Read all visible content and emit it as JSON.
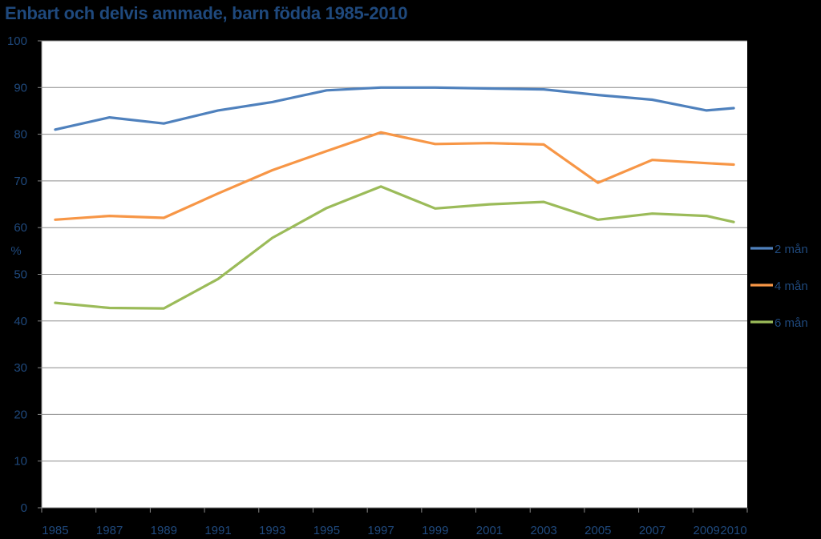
{
  "chart_data": {
    "type": "line",
    "title": "Enbart och delvis ammade, barn födda 1985-2010",
    "xlabel": "",
    "ylabel": "%",
    "ylim": [
      0,
      100
    ],
    "yticks": [
      "0",
      "10",
      "20",
      "30",
      "40",
      "50",
      "60",
      "70",
      "80",
      "90",
      "100"
    ],
    "categories": [
      "1985",
      "1987",
      "1989",
      "1991",
      "1993",
      "1995",
      "1997",
      "1999",
      "2001",
      "2003",
      "2005",
      "2007",
      "2009",
      "2010"
    ],
    "x": [
      "1985",
      "1986",
      "1987",
      "1988",
      "1989",
      "1990",
      "1991",
      "1992",
      "1993",
      "1994",
      "1995",
      "1996",
      "1997",
      "1998",
      "1999",
      "2000",
      "2001",
      "2002",
      "2003",
      "2004",
      "2005",
      "2006",
      "2007",
      "2008",
      "2009",
      "2010"
    ],
    "grid": "horizontal",
    "legend_position": "right",
    "series": [
      {
        "name": "2 mån",
        "color": "#4F81BD",
        "x": [
          "1985",
          "1987",
          "1989",
          "1991",
          "1993",
          "1995",
          "1997",
          "1999",
          "2001",
          "2003",
          "2005",
          "2007",
          "2009",
          "2010"
        ],
        "values": [
          81.0,
          83.6,
          82.3,
          85.1,
          86.9,
          89.4,
          90.0,
          90.0,
          89.8,
          89.6,
          88.4,
          87.4,
          85.1,
          85.6
        ]
      },
      {
        "name": "4 mån",
        "color": "#F79646",
        "x": [
          "1985",
          "1987",
          "1989",
          "1991",
          "1993",
          "1995",
          "1997",
          "1999",
          "2001",
          "2003",
          "2005",
          "2007",
          "2009",
          "2010"
        ],
        "values": [
          61.7,
          62.5,
          62.1,
          67.3,
          72.3,
          76.4,
          80.4,
          77.9,
          78.1,
          77.8,
          69.6,
          74.5,
          73.8,
          73.5
        ]
      },
      {
        "name": "6 mån",
        "color": "#9BBB59",
        "x": [
          "1985",
          "1987",
          "1989",
          "1991",
          "1993",
          "1995",
          "1997",
          "1999",
          "2001",
          "2003",
          "2005",
          "2007",
          "2009",
          "2010"
        ],
        "values": [
          43.9,
          42.8,
          42.7,
          49.0,
          57.8,
          64.2,
          68.8,
          64.1,
          65.0,
          65.5,
          61.7,
          63.0,
          62.5,
          61.2
        ]
      }
    ]
  }
}
